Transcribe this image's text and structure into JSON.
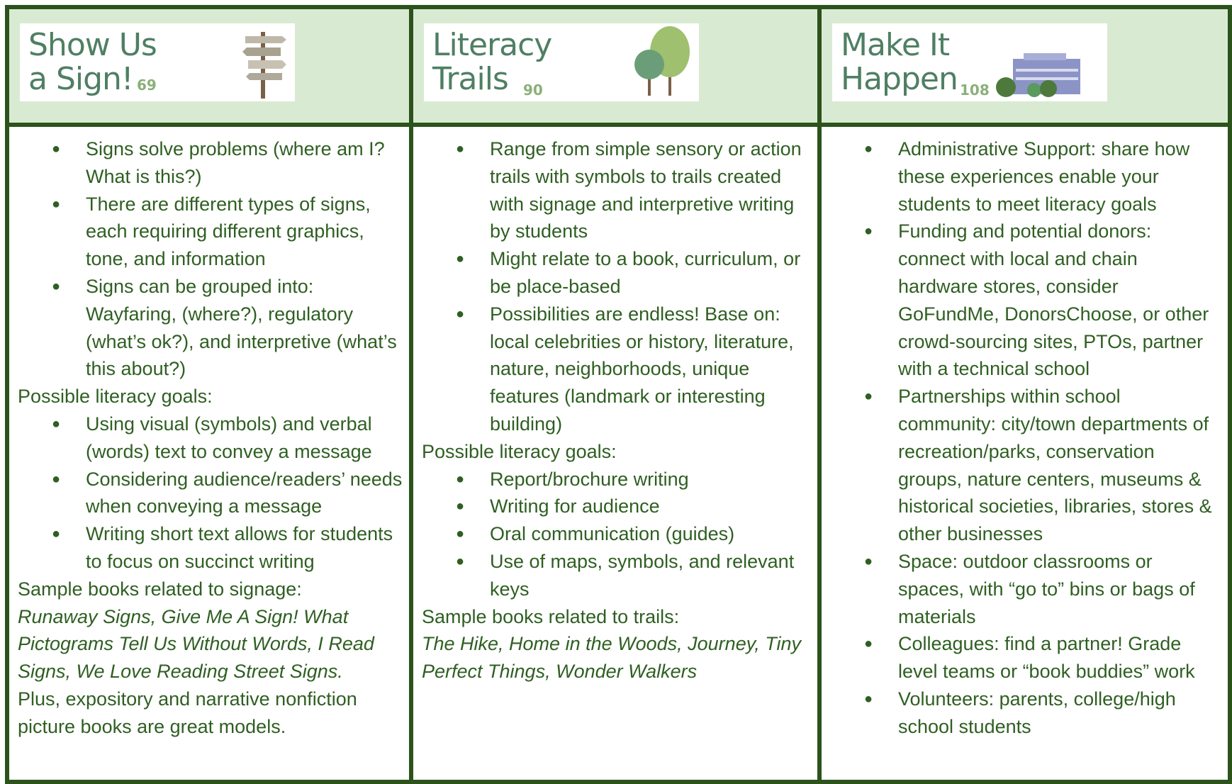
{
  "columns": [
    {
      "header": {
        "title_lines": [
          "Show Us",
          "a Sign!"
        ],
        "page": "69"
      },
      "bullets": [
        "Signs solve problems (where am I? What is this?)",
        "There are different types of signs, each requiring different graphics, tone, and information",
        "Signs can be grouped into: Wayfaring, (where?), regulatory (what’s ok?), and interpretive (what’s this about?)"
      ],
      "goals_heading": "Possible literacy goals:",
      "goals": [
        "Using visual (symbols) and verbal (words) text to convey a message",
        "Considering audience/readers’ needs when conveying a message",
        "Writing short text allows for students to focus on succinct writing"
      ],
      "books_heading": "Sample books related to signage:",
      "books": "Runaway Signs, Give Me A Sign! What Pictograms Tell Us Without Words, I Read Signs, We Love Reading Street Signs.",
      "note": "Plus, expository and narrative nonfiction picture books are great models."
    },
    {
      "header": {
        "title_lines": [
          "Literacy",
          "Trails"
        ],
        "page": "90"
      },
      "bullets": [
        "Range from simple sensory or action trails with symbols to trails created with signage and interpretive writing by students",
        "Might relate to a book, curriculum, or be place-based",
        "Possibilities are endless! Base on: local celebrities or history, literature, nature, neighborhoods, unique features (landmark or interesting building)"
      ],
      "goals_heading": "Possible literacy goals:",
      "goals": [
        "Report/brochure writing",
        "Writing for audience",
        "Oral communication (guides)",
        "Use of maps, symbols, and relevant keys"
      ],
      "books_heading": "Sample books related to trails:",
      "books": "The Hike, Home in the Woods, Journey, Tiny Perfect Things, Wonder Walkers"
    },
    {
      "header": {
        "title_lines": [
          "Make It",
          "Happen"
        ],
        "page": "108"
      },
      "bullets": [
        "Administrative Support: share how these experiences enable your students to meet literacy goals",
        "Funding and potential donors: connect with local and chain hardware stores, consider GoFundMe, DonorsChoose, or other crowd-sourcing sites, PTOs, partner with a technical school",
        "Partnerships within school community: city/town departments of recreation/parks, conservation groups, nature centers, museums & historical societies, libraries, stores & other businesses",
        "Space: outdoor classrooms or spaces, with “go to” bins or bags of materials",
        "Colleagues: find a partner! Grade level teams or “book buddies” work",
        "Volunteers: parents, college/high school students"
      ]
    }
  ]
}
